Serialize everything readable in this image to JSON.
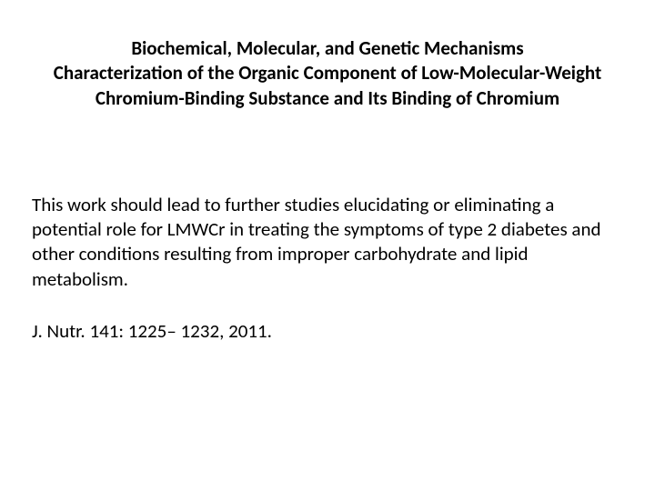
{
  "title": {
    "line1": "Biochemical, Molecular, and Genetic Mechanisms",
    "line2": "Characterization of the Organic Component of Low-Molecular-Weight Chromium-Binding Substance and Its Binding of Chromium"
  },
  "body": "This work should lead to further studies elucidating or eliminating a potential role for LMWCr in treating the symptoms of type 2 diabetes and other conditions resulting from improper carbohydrate and lipid metabolism.",
  "citation": "J. Nutr. 141: 1225– 1232, 2011.",
  "styles": {
    "background_color": "#ffffff",
    "text_color": "#000000",
    "font_family": "Calibri, Arial, sans-serif",
    "title_fontsize": 21,
    "title_fontweight": "bold",
    "body_fontsize": 21,
    "citation_fontsize": 21,
    "line_height": 1.3
  }
}
